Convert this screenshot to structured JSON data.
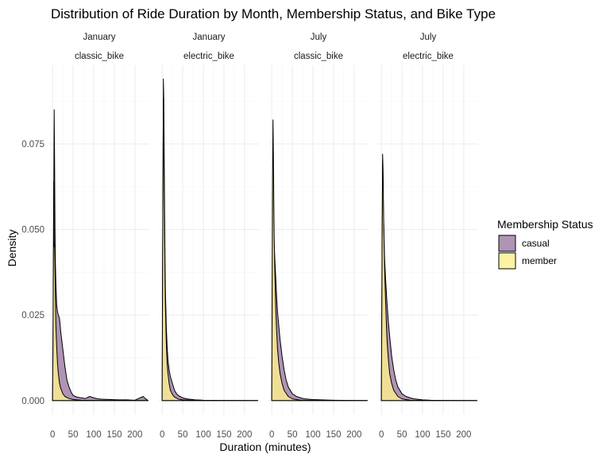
{
  "chart_data": {
    "type": "area",
    "title": "Distribution of Ride Duration by Month, Membership Status, and Bike Type",
    "xlabel": "Duration (minutes)",
    "ylabel": "Density",
    "xlim": [
      -8,
      235
    ],
    "ylim": [
      -0.004,
      0.098
    ],
    "x_ticks": [
      0,
      50,
      100,
      150,
      200
    ],
    "x_tick_labels": [
      "0",
      "50",
      "100",
      "150",
      "200"
    ],
    "y_ticks": [
      0,
      0.025,
      0.05,
      0.075
    ],
    "y_tick_labels": [
      "0.000",
      "0.025",
      "0.050",
      "0.075"
    ],
    "grid": true,
    "legend": {
      "title": "Membership Status",
      "position": "right",
      "entries": [
        {
          "label": "casual",
          "color": "#9e7ca6"
        },
        {
          "label": "member",
          "color": "#fdef8f"
        }
      ]
    },
    "panels": [
      {
        "month": "January",
        "bike": "classic_bike",
        "series": [
          {
            "name": "casual",
            "color": "#9e7ca6",
            "points": [
              [
                0,
                0
              ],
              [
                1,
                0.012
              ],
              [
                2,
                0.03
              ],
              [
                3,
                0.06
              ],
              [
                4,
                0.085
              ],
              [
                5,
                0.07
              ],
              [
                6,
                0.05
              ],
              [
                7,
                0.04
              ],
              [
                8,
                0.035
              ],
              [
                10,
                0.028
              ],
              [
                12,
                0.026
              ],
              [
                14,
                0.025
              ],
              [
                17,
                0.024
              ],
              [
                20,
                0.02
              ],
              [
                23,
                0.017
              ],
              [
                26,
                0.014
              ],
              [
                30,
                0.01
              ],
              [
                35,
                0.006
              ],
              [
                40,
                0.004
              ],
              [
                45,
                0.0025
              ],
              [
                50,
                0.0015
              ],
              [
                60,
                0.001
              ],
              [
                70,
                0.0008
              ],
              [
                80,
                0.0006
              ],
              [
                90,
                0.0012
              ],
              [
                100,
                0.0008
              ],
              [
                110,
                0.0005
              ],
              [
                120,
                0.0004
              ],
              [
                140,
                0.0003
              ],
              [
                160,
                0.0002
              ],
              [
                180,
                0.0002
              ],
              [
                200,
                0.0001
              ],
              [
                220,
                0.0012
              ],
              [
                225,
                0.0006
              ],
              [
                232,
                0
              ]
            ]
          },
          {
            "name": "member",
            "color": "#fdef8f",
            "points": [
              [
                0,
                0
              ],
              [
                1,
                0.015
              ],
              [
                2,
                0.04
              ],
              [
                3,
                0.064
              ],
              [
                4,
                0.045
              ],
              [
                5,
                0.046
              ],
              [
                6,
                0.038
              ],
              [
                7,
                0.03
              ],
              [
                8,
                0.022
              ],
              [
                10,
                0.016
              ],
              [
                12,
                0.011
              ],
              [
                14,
                0.008
              ],
              [
                17,
                0.005
              ],
              [
                20,
                0.0035
              ],
              [
                25,
                0.002
              ],
              [
                30,
                0.0012
              ],
              [
                40,
                0.0006
              ],
              [
                50,
                0.0003
              ],
              [
                70,
                0.0001
              ],
              [
                100,
                5e-05
              ],
              [
                150,
                2e-05
              ],
              [
                232,
                0
              ]
            ]
          }
        ]
      },
      {
        "month": "January",
        "bike": "electric_bike",
        "series": [
          {
            "name": "casual",
            "color": "#9e7ca6",
            "points": [
              [
                0,
                0
              ],
              [
                1,
                0.03
              ],
              [
                2,
                0.06
              ],
              [
                3,
                0.094
              ],
              [
                4,
                0.088
              ],
              [
                5,
                0.07
              ],
              [
                6,
                0.055
              ],
              [
                7,
                0.04
              ],
              [
                8,
                0.032
              ],
              [
                10,
                0.022
              ],
              [
                12,
                0.016
              ],
              [
                14,
                0.012
              ],
              [
                17,
                0.009
              ],
              [
                20,
                0.007
              ],
              [
                25,
                0.005
              ],
              [
                30,
                0.003
              ],
              [
                35,
                0.002
              ],
              [
                40,
                0.0014
              ],
              [
                50,
                0.0008
              ],
              [
                60,
                0.0005
              ],
              [
                80,
                0.0002
              ],
              [
                100,
                0.0001
              ],
              [
                150,
                5e-05
              ],
              [
                232,
                0
              ]
            ]
          },
          {
            "name": "member",
            "color": "#fdef8f",
            "points": [
              [
                0,
                0
              ],
              [
                1,
                0.035
              ],
              [
                2,
                0.065
              ],
              [
                3,
                0.088
              ],
              [
                4,
                0.08
              ],
              [
                5,
                0.062
              ],
              [
                6,
                0.048
              ],
              [
                7,
                0.035
              ],
              [
                8,
                0.027
              ],
              [
                10,
                0.017
              ],
              [
                12,
                0.011
              ],
              [
                14,
                0.008
              ],
              [
                17,
                0.005
              ],
              [
                20,
                0.003
              ],
              [
                25,
                0.0018
              ],
              [
                30,
                0.001
              ],
              [
                40,
                0.0004
              ],
              [
                50,
                0.0002
              ],
              [
                80,
                5e-05
              ],
              [
                232,
                0
              ]
            ]
          }
        ]
      },
      {
        "month": "July",
        "bike": "classic_bike",
        "series": [
          {
            "name": "casual",
            "color": "#9e7ca6",
            "points": [
              [
                0,
                0
              ],
              [
                1,
                0.02
              ],
              [
                2,
                0.05
              ],
              [
                3,
                0.072
              ],
              [
                4,
                0.06
              ],
              [
                5,
                0.05
              ],
              [
                6,
                0.045
              ],
              [
                8,
                0.04
              ],
              [
                10,
                0.035
              ],
              [
                12,
                0.03
              ],
              [
                14,
                0.026
              ],
              [
                17,
                0.022
              ],
              [
                20,
                0.018
              ],
              [
                25,
                0.013
              ],
              [
                30,
                0.009
              ],
              [
                35,
                0.006
              ],
              [
                40,
                0.004
              ],
              [
                50,
                0.002
              ],
              [
                60,
                0.0012
              ],
              [
                70,
                0.0008
              ],
              [
                80,
                0.0005
              ],
              [
                100,
                0.0003
              ],
              [
                120,
                0.0002
              ],
              [
                150,
                0.0001
              ],
              [
                200,
                5e-05
              ],
              [
                232,
                0
              ]
            ]
          },
          {
            "name": "member",
            "color": "#fdef8f",
            "points": [
              [
                0,
                0
              ],
              [
                1,
                0.035
              ],
              [
                2,
                0.065
              ],
              [
                3,
                0.082
              ],
              [
                4,
                0.072
              ],
              [
                5,
                0.058
              ],
              [
                6,
                0.047
              ],
              [
                7,
                0.04
              ],
              [
                8,
                0.035
              ],
              [
                10,
                0.026
              ],
              [
                12,
                0.02
              ],
              [
                14,
                0.015
              ],
              [
                17,
                0.011
              ],
              [
                20,
                0.008
              ],
              [
                25,
                0.005
              ],
              [
                30,
                0.003
              ],
              [
                40,
                0.0012
              ],
              [
                50,
                0.0005
              ],
              [
                70,
                0.0001
              ],
              [
                100,
                5e-05
              ],
              [
                232,
                0
              ]
            ]
          }
        ]
      },
      {
        "month": "July",
        "bike": "electric_bike",
        "series": [
          {
            "name": "casual",
            "color": "#9e7ca6",
            "points": [
              [
                0,
                0
              ],
              [
                1,
                0.02
              ],
              [
                2,
                0.045
              ],
              [
                3,
                0.07
              ],
              [
                4,
                0.065
              ],
              [
                5,
                0.055
              ],
              [
                6,
                0.05
              ],
              [
                7,
                0.045
              ],
              [
                8,
                0.041
              ],
              [
                10,
                0.036
              ],
              [
                12,
                0.032
              ],
              [
                14,
                0.028
              ],
              [
                17,
                0.023
              ],
              [
                20,
                0.019
              ],
              [
                25,
                0.013
              ],
              [
                30,
                0.009
              ],
              [
                35,
                0.006
              ],
              [
                40,
                0.004
              ],
              [
                50,
                0.002
              ],
              [
                60,
                0.0012
              ],
              [
                70,
                0.0008
              ],
              [
                80,
                0.0005
              ],
              [
                100,
                0.0002
              ],
              [
                120,
                0.0001
              ],
              [
                150,
                5e-05
              ],
              [
                232,
                0
              ]
            ]
          },
          {
            "name": "member",
            "color": "#fdef8f",
            "points": [
              [
                0,
                0
              ],
              [
                1,
                0.025
              ],
              [
                2,
                0.05
              ],
              [
                3,
                0.072
              ],
              [
                4,
                0.068
              ],
              [
                5,
                0.058
              ],
              [
                6,
                0.05
              ],
              [
                7,
                0.044
              ],
              [
                8,
                0.038
              ],
              [
                10,
                0.03
              ],
              [
                12,
                0.023
              ],
              [
                14,
                0.017
              ],
              [
                17,
                0.012
              ],
              [
                20,
                0.008
              ],
              [
                25,
                0.005
              ],
              [
                30,
                0.003
              ],
              [
                40,
                0.0012
              ],
              [
                50,
                0.0005
              ],
              [
                70,
                0.0001
              ],
              [
                100,
                5e-05
              ],
              [
                232,
                0
              ]
            ]
          }
        ]
      }
    ]
  }
}
